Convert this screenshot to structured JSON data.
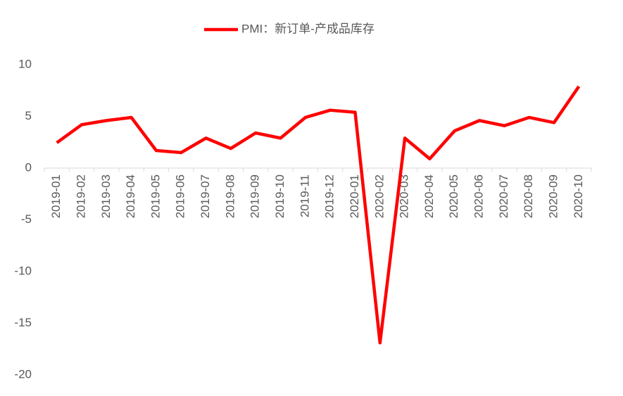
{
  "chart_data": {
    "type": "line",
    "categories": [
      "2019-01",
      "2019-02",
      "2019-03",
      "2019-04",
      "2019-05",
      "2019-06",
      "2019-07",
      "2019-08",
      "2019-09",
      "2019-10",
      "2019-11",
      "2019-12",
      "2020-01",
      "2020-02",
      "2020-03",
      "2020-04",
      "2020-05",
      "2020-06",
      "2020-07",
      "2020-08",
      "2020-09",
      "2020-10"
    ],
    "series": [
      {
        "name": "PMI：新订单-产成品库存",
        "color": "#ff0000",
        "values": [
          2.45,
          4.2,
          4.6,
          4.9,
          1.7,
          1.5,
          2.9,
          1.9,
          3.4,
          2.9,
          4.9,
          5.6,
          5.4,
          -16.9,
          2.9,
          0.9,
          3.6,
          4.6,
          4.1,
          4.9,
          4.4,
          7.9
        ]
      }
    ],
    "ylim": [
      -20,
      10
    ],
    "yticks": [
      -20,
      -15,
      -10,
      -5,
      0,
      5,
      10
    ],
    "legend": "top"
  }
}
